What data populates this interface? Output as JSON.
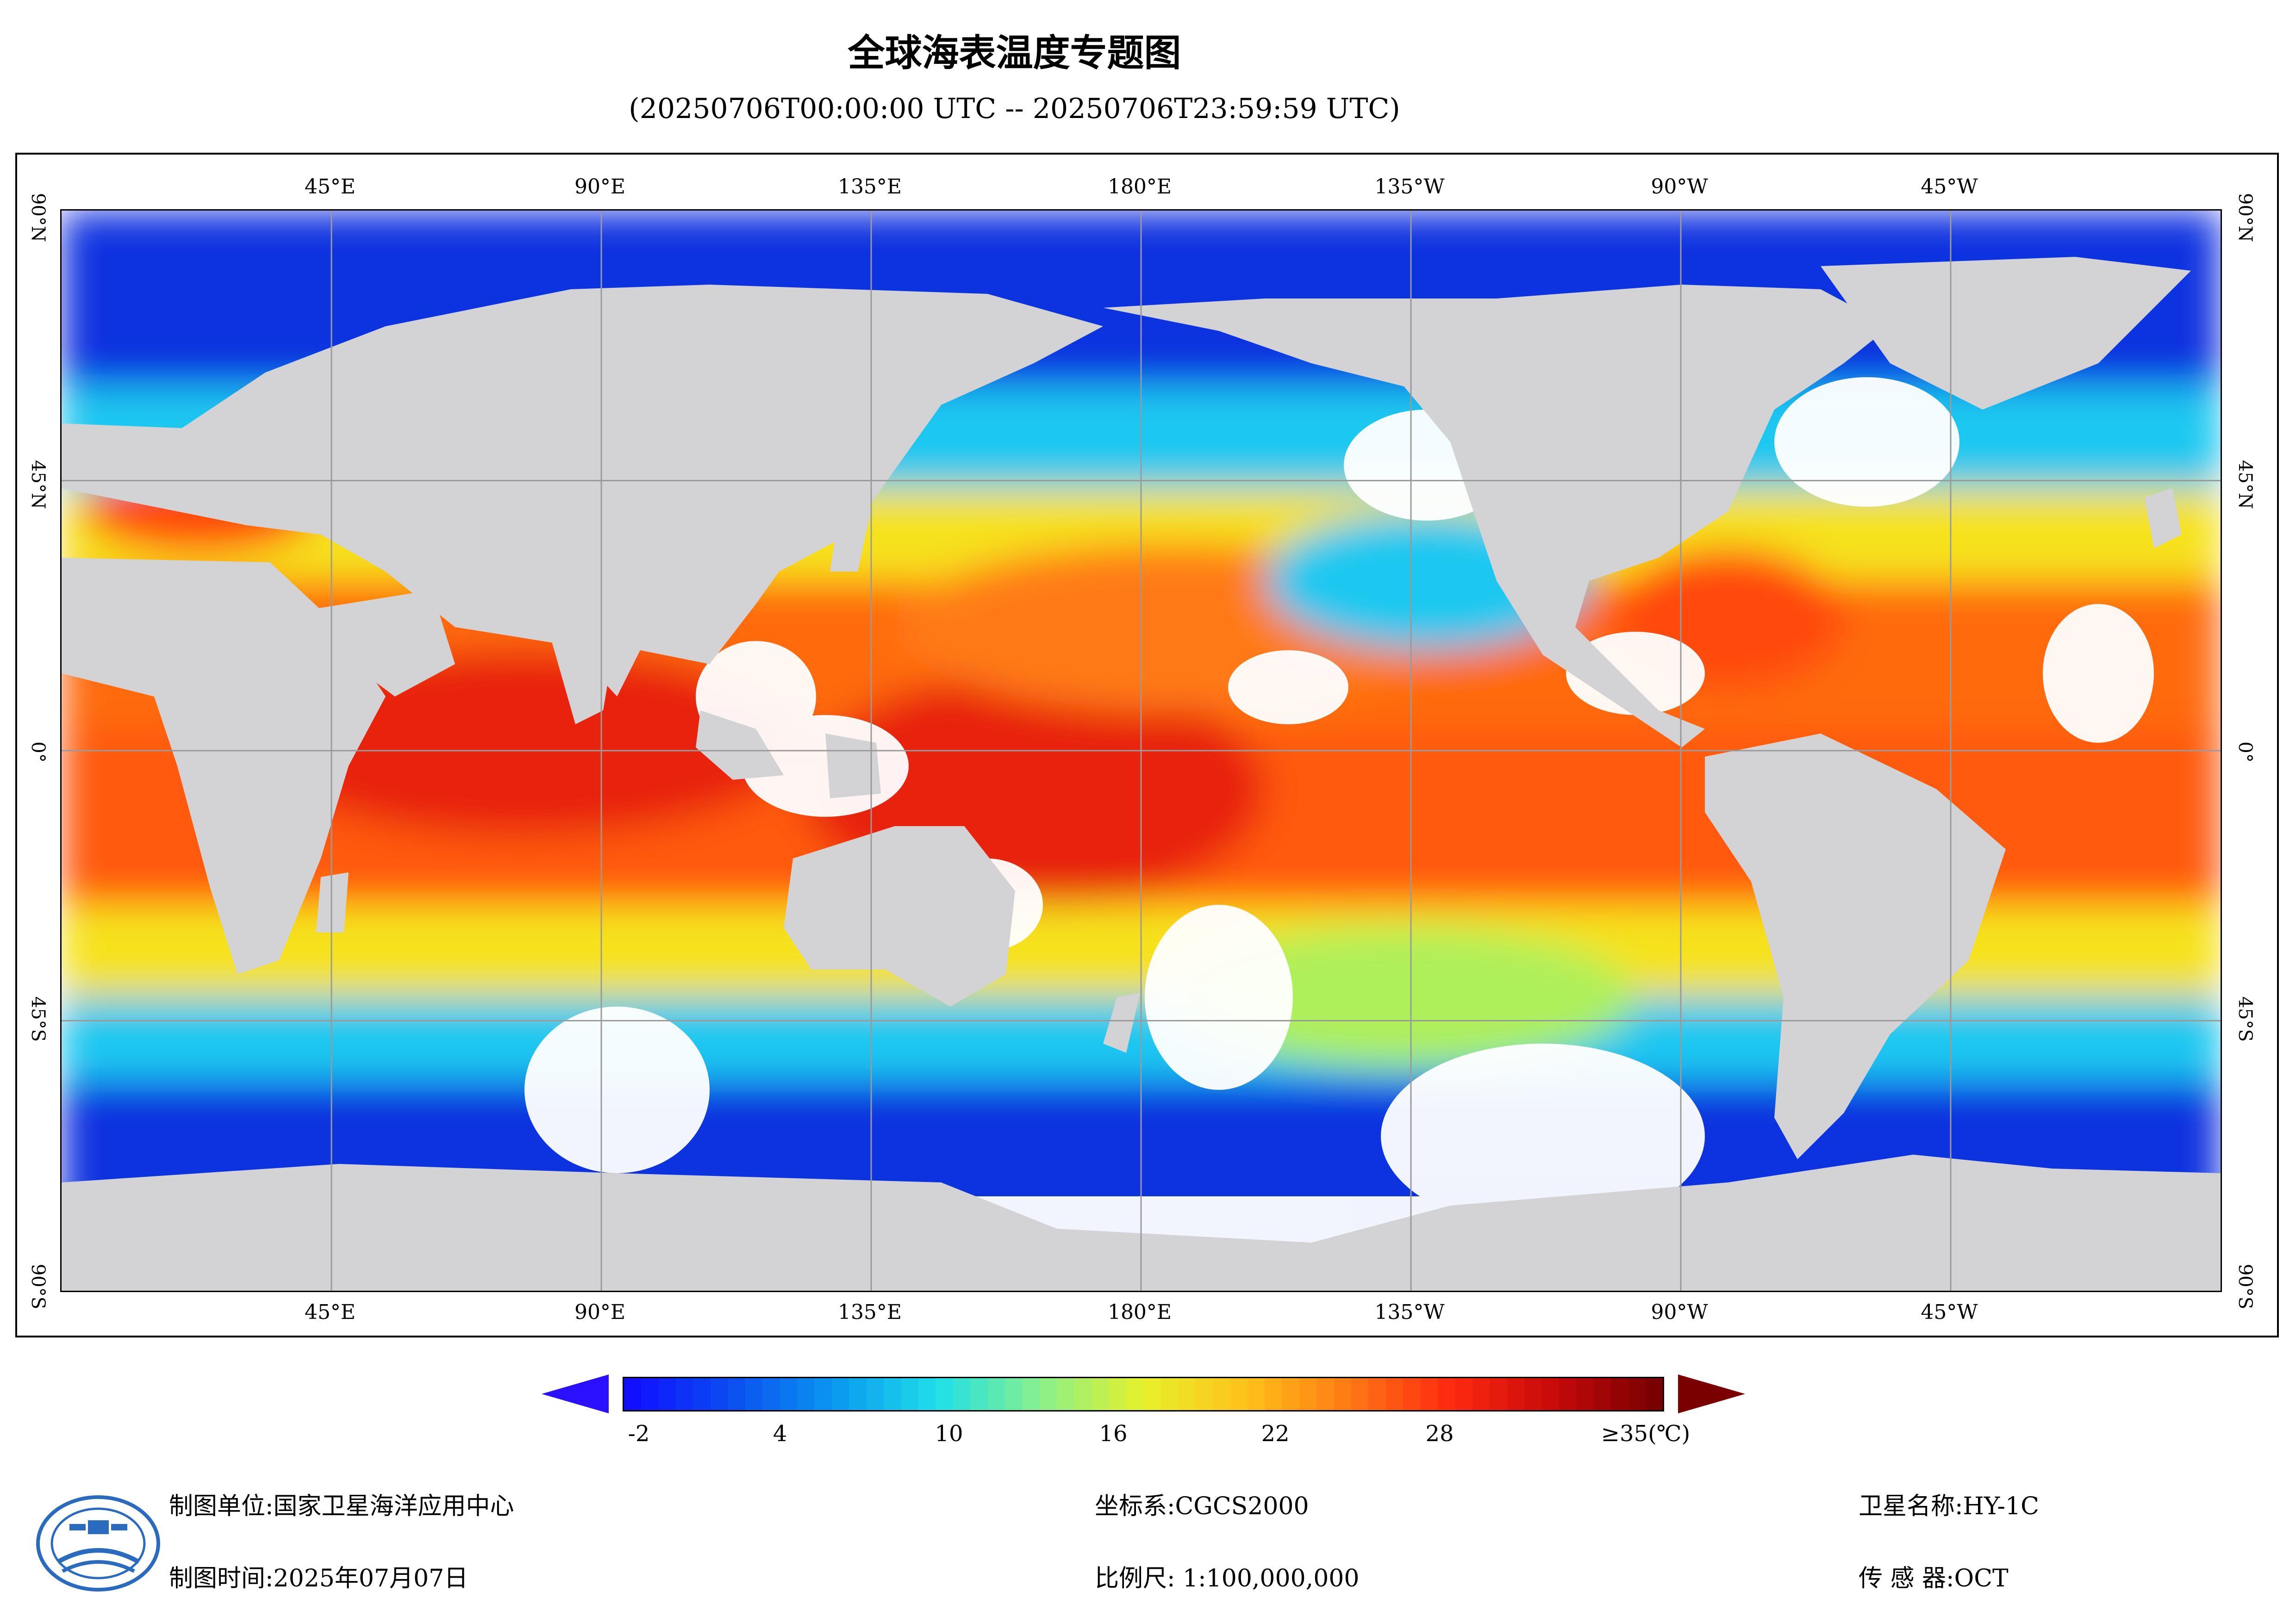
{
  "title": "全球海表温度专题图",
  "subtitle": "(20250706T00:00:00 UTC -- 20250706T23:59:59 UTC)",
  "map": {
    "lon_labels": [
      "45°E",
      "90°E",
      "135°E",
      "180°E",
      "135°W",
      "90°W",
      "45°W"
    ],
    "lat_labels": [
      "90°N",
      "45°N",
      "0°",
      "45°S",
      "90°S"
    ],
    "colors": {
      "land": "#d3d3d6",
      "cloud": "#ffffff",
      "grid": "#9a9a9a",
      "cold": "#0a30e0",
      "cool": "#1ec8f0",
      "mild": "#aef05a",
      "warm": "#f6e21c",
      "hot": "#ff6a10",
      "hottest": "#e8200c"
    }
  },
  "colorbar": {
    "ticks": [
      "-2",
      "4",
      "10",
      "16",
      "22",
      "28",
      "≥35(℃)"
    ],
    "gradient": [
      "#1010ff",
      "#0a50f0",
      "#0a9af0",
      "#20e0e8",
      "#8af08a",
      "#e6f02a",
      "#ffc21a",
      "#ff7a14",
      "#ff2a10",
      "#c80a0a",
      "#7a0000"
    ],
    "under_color": "#2a10ff",
    "over_color": "#7a0000"
  },
  "footer": {
    "unit": "制图单位:国家卫星海洋应用中心",
    "time": "制图时间:2025年07月07日",
    "crs": "坐标系:CGCS2000",
    "scale": "比例尺: 1:100,000,000",
    "satellite": "卫星名称:HY-1C",
    "sensor": "传 感 器:OCT"
  }
}
